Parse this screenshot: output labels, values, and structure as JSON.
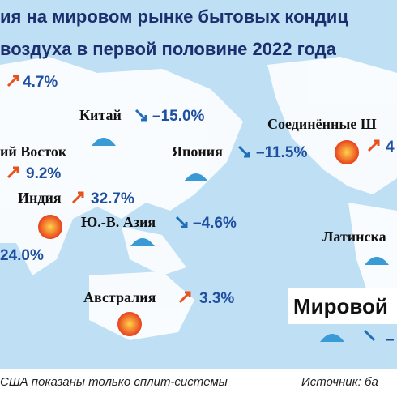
{
  "header": {
    "line1": "ия на мировом рынке бытовых кондиц",
    "line2": "воздуха  в первой половине 2022 года"
  },
  "regions": [
    {
      "change": "4.7%"
    },
    {
      "name": "Китай",
      "change": "–15.0%"
    },
    {
      "name": "ий Восток",
      "change": "9.2%"
    },
    {
      "name": "Индия",
      "change": "32.7%"
    },
    {
      "change": "24.0%"
    },
    {
      "name": "Ю.-В. Азия",
      "change": "–4.6%"
    },
    {
      "name": "Япония",
      "change": "–11.5%"
    },
    {
      "name": "Соединённые Ш",
      "change": "4"
    },
    {
      "name": "Латинска"
    },
    {
      "name": "Австралия",
      "change": "3.3%"
    },
    {
      "name": "Мировой",
      "change": "–"
    }
  ],
  "footer": {
    "note": "США показаны только сплит-системы",
    "source": "Источник: ба"
  }
}
